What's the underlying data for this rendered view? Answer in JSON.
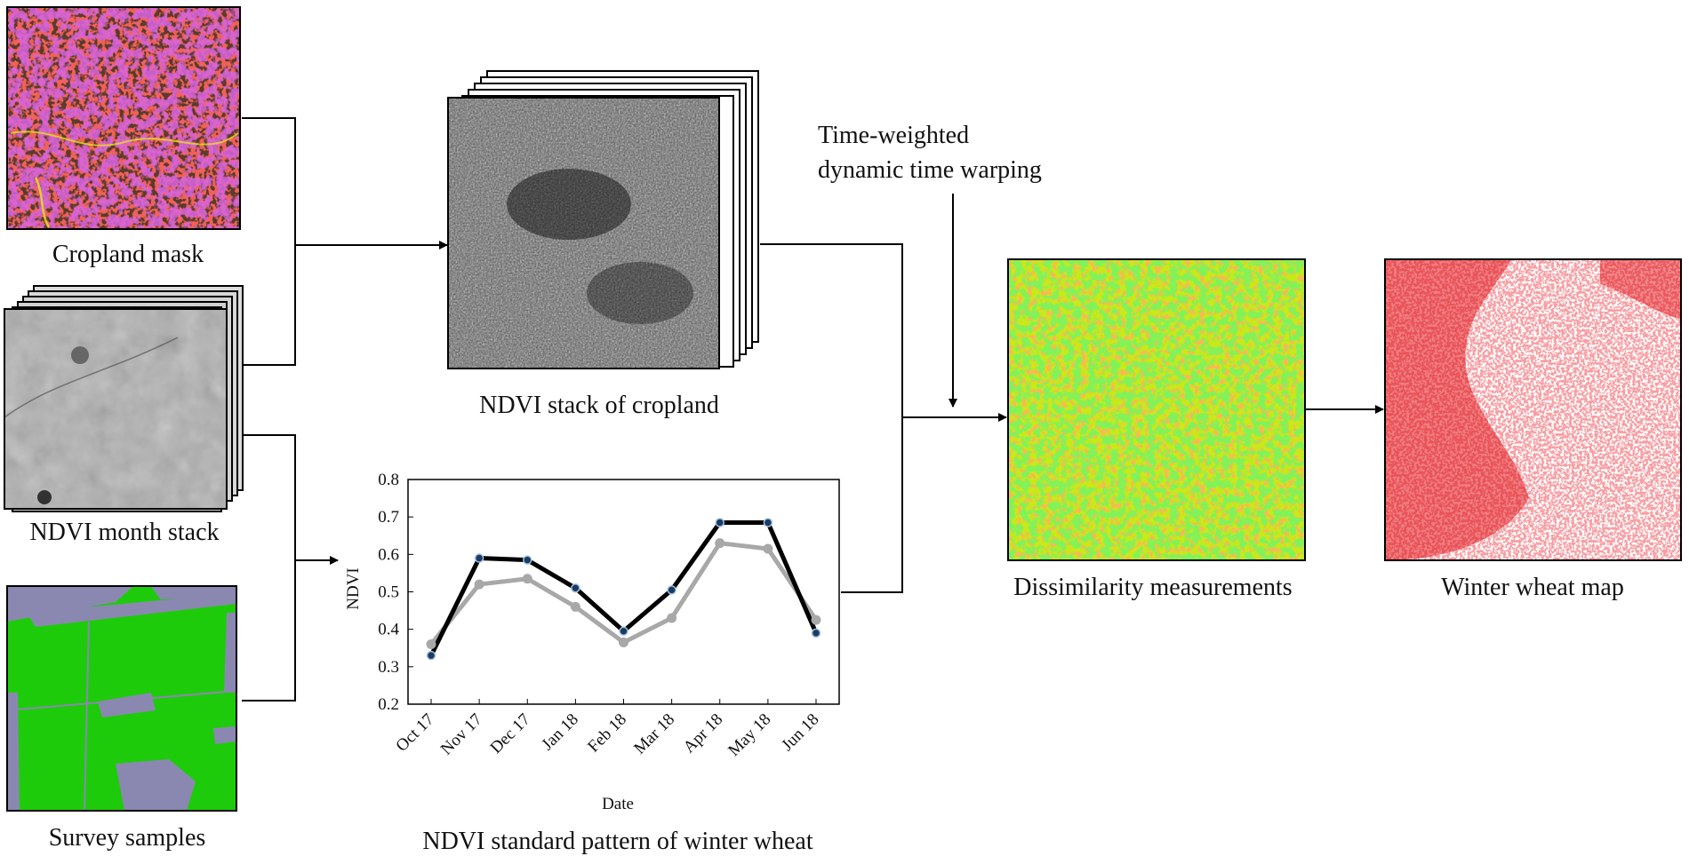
{
  "captions": {
    "cropland_mask": "Cropland mask",
    "ndvi_month_stack": "NDVI month stack",
    "survey_samples": "Survey samples",
    "ndvi_stack_cropland": "NDVI stack of cropland",
    "twdtw_line1": "Time-weighted",
    "twdtw_line2": "dynamic time warping",
    "dissimilarity": "Dissimilarity measurements",
    "winter_wheat_map": "Winter wheat map",
    "ndvi_pattern": "NDVI standard pattern of winter wheat"
  },
  "colors": {
    "cropland_bg": "#5a3a2a",
    "cropland_red": "#e0201a",
    "cropland_purple": "#b020c0",
    "cropland_blue": "#4060e0",
    "survey_green": "#1ecb0a",
    "survey_gray": "#8a88b0",
    "dissim_green": "#39e21a",
    "dissim_yellow": "#e4ee14",
    "dissim_orange": "#f07a18",
    "wheat_red": "#e0141a",
    "series_black": "#000000",
    "series_gray": "#a8a8a8",
    "marker_fill": "#1e3a5f"
  },
  "chart_data": {
    "type": "line",
    "categories": [
      "Oct 17",
      "Nov 17",
      "Dec 17",
      "Jan 18",
      "Feb 18",
      "Mar 18",
      "Apr 18",
      "May 18",
      "Jun 18"
    ],
    "series": [
      {
        "values": [
          0.33,
          0.59,
          0.585,
          0.51,
          0.395,
          0.505,
          0.685,
          0.685,
          0.39
        ],
        "color": "#000000",
        "markers": true
      },
      {
        "values": [
          0.36,
          0.52,
          0.535,
          0.46,
          0.365,
          0.43,
          0.63,
          0.615,
          0.425
        ],
        "color": "#a8a8a8",
        "markers": true
      }
    ],
    "xlabel": "Date",
    "ylabel": "NDVI",
    "ylim": [
      0.2,
      0.8
    ],
    "yticks": [
      "0.2",
      "0.3",
      "0.4",
      "0.5",
      "0.6",
      "0.7",
      "0.8"
    ],
    "grid": false
  }
}
